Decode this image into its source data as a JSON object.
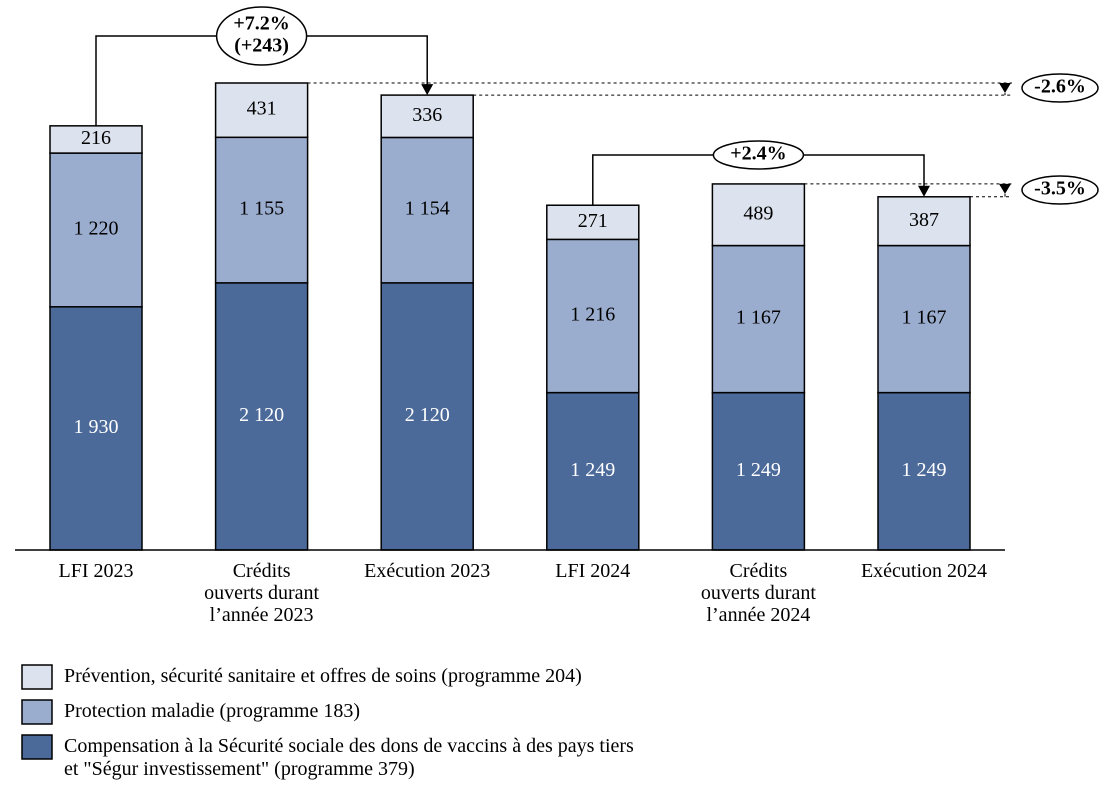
{
  "chart_data": {
    "type": "stacked_bar",
    "categories": [
      "LFI 2023",
      "Crédits ouverts durant l’année 2023",
      "Exécution 2023",
      "LFI 2024",
      "Crédits ouverts durant l’année 2024",
      "Exécution 2024"
    ],
    "series": [
      {
        "name": "Compensation à la Sécurité sociale des dons de vaccins à des pays tiers et \"Ségur investissement\" (programme 379)",
        "color": "#4b6a99",
        "values": [
          1930,
          2120,
          2120,
          1249,
          1249,
          1249
        ],
        "value_labels": [
          "1 930",
          "2 120",
          "2 120",
          "1 249",
          "1 249",
          "1 249"
        ]
      },
      {
        "name": "Protection maladie (programme 183)",
        "color": "#9badcf",
        "values": [
          1220,
          1155,
          1154,
          1216,
          1167,
          1167
        ],
        "value_labels": [
          "1 220",
          "1 155",
          "1 154",
          "1 216",
          "1 167",
          "1 167"
        ]
      },
      {
        "name": "Prévention, sécurité sanitaire et offres de soins (programme 204)",
        "color": "#dde3ee",
        "values": [
          216,
          431,
          336,
          271,
          489,
          387
        ]
      }
    ],
    "annotations": [
      "+7.2%",
      "(+243)",
      "-2.6%",
      "+2.4%",
      "-3.5%"
    ]
  }
}
